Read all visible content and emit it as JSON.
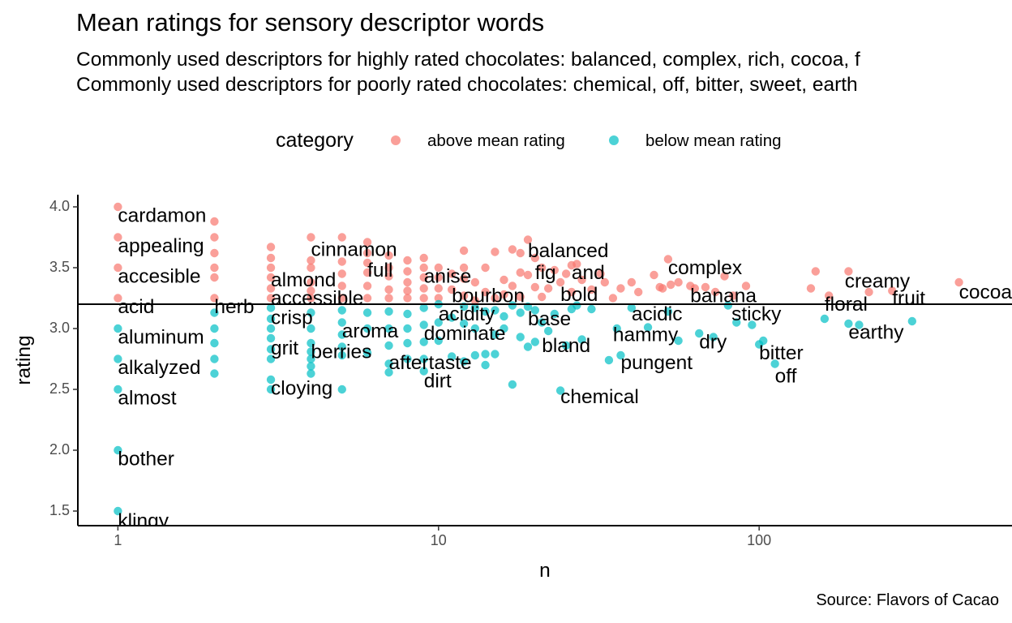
{
  "chart_data": {
    "type": "scatter",
    "title": "Mean ratings for sensory descriptor words",
    "subtitle_lines": [
      "Commonly used descriptors for highly rated chocolates: balanced, complex, rich, cocoa, f",
      "Commonly used descriptors for poorly rated chocolates: chemical, off, bitter, sweet, earth"
    ],
    "caption": "Source: Flavors of Cacao",
    "xlabel": "n",
    "ylabel": "rating",
    "x_scale": "log10",
    "xlim": [
      0.75,
      560
    ],
    "ylim": [
      1.38,
      4.1
    ],
    "x_ticks": [
      1,
      10,
      100
    ],
    "x_tick_labels": [
      "1",
      "10",
      "100"
    ],
    "y_ticks": [
      1.5,
      2.0,
      2.5,
      3.0,
      3.5,
      4.0
    ],
    "y_tick_labels": [
      "1.5",
      "2.0",
      "2.5",
      "3.0",
      "3.5",
      "4.0"
    ],
    "mean_rating": 3.2,
    "grid": false,
    "legend": {
      "title": "category",
      "position": "top",
      "entries": [
        {
          "label": "above mean rating",
          "color": "#F8766D"
        },
        {
          "label": "below mean rating",
          "color": "#00BFC4"
        }
      ]
    },
    "colors": {
      "above": "#F8766D",
      "below": "#00BFC4"
    },
    "points_above": [
      [
        1,
        4.0
      ],
      [
        1,
        3.75
      ],
      [
        1,
        3.5
      ],
      [
        1,
        3.25
      ],
      [
        2,
        3.88
      ],
      [
        2,
        3.75
      ],
      [
        2,
        3.62
      ],
      [
        2,
        3.5
      ],
      [
        2,
        3.42
      ],
      [
        2,
        3.25
      ],
      [
        3,
        3.67
      ],
      [
        3,
        3.58
      ],
      [
        3,
        3.5
      ],
      [
        3,
        3.42
      ],
      [
        3,
        3.33
      ],
      [
        3,
        3.25
      ],
      [
        4,
        3.75
      ],
      [
        4,
        3.56
      ],
      [
        4,
        3.5
      ],
      [
        4,
        3.38
      ],
      [
        4,
        3.31
      ],
      [
        4,
        3.25
      ],
      [
        5,
        3.75
      ],
      [
        5,
        3.55
      ],
      [
        5,
        3.45
      ],
      [
        5,
        3.35
      ],
      [
        5,
        3.25
      ],
      [
        6,
        3.71
      ],
      [
        6,
        3.62
      ],
      [
        6,
        3.54
      ],
      [
        6,
        3.46
      ],
      [
        6,
        3.35
      ],
      [
        6,
        3.25
      ],
      [
        7,
        3.6
      ],
      [
        7,
        3.5
      ],
      [
        7,
        3.43
      ],
      [
        7,
        3.32
      ],
      [
        7,
        3.25
      ],
      [
        8,
        3.56
      ],
      [
        8,
        3.47
      ],
      [
        8,
        3.38
      ],
      [
        8,
        3.31
      ],
      [
        8,
        3.25
      ],
      [
        9,
        3.58
      ],
      [
        9,
        3.5
      ],
      [
        9,
        3.42
      ],
      [
        9,
        3.33
      ],
      [
        9,
        3.25
      ],
      [
        10,
        3.5
      ],
      [
        10,
        3.42
      ],
      [
        10,
        3.33
      ],
      [
        10,
        3.25
      ],
      [
        11,
        3.45
      ],
      [
        11,
        3.32
      ],
      [
        12,
        3.64
      ],
      [
        12,
        3.5
      ],
      [
        12,
        3.41
      ],
      [
        12,
        3.27
      ],
      [
        13,
        3.38
      ],
      [
        13,
        3.23
      ],
      [
        14,
        3.5
      ],
      [
        14,
        3.3
      ],
      [
        15,
        3.63
      ],
      [
        15,
        3.25
      ],
      [
        16,
        3.4
      ],
      [
        16,
        3.28
      ],
      [
        17,
        3.65
      ],
      [
        17,
        3.35
      ],
      [
        18,
        3.62
      ],
      [
        18,
        3.46
      ],
      [
        18,
        3.26
      ],
      [
        19,
        3.73
      ],
      [
        19,
        3.44
      ],
      [
        20,
        3.58
      ],
      [
        20,
        3.34
      ],
      [
        21,
        3.5
      ],
      [
        21,
        3.26
      ],
      [
        22,
        3.33
      ],
      [
        23,
        3.48
      ],
      [
        24,
        3.38
      ],
      [
        25,
        3.45
      ],
      [
        26,
        3.52
      ],
      [
        26,
        3.3
      ],
      [
        27,
        3.53
      ],
      [
        28,
        3.4
      ],
      [
        30,
        3.32
      ],
      [
        32,
        3.45
      ],
      [
        33,
        3.38
      ],
      [
        35,
        3.25
      ],
      [
        37,
        3.33
      ],
      [
        40,
        3.38
      ],
      [
        42,
        3.3
      ],
      [
        47,
        3.44
      ],
      [
        49,
        3.34
      ],
      [
        50,
        3.33
      ],
      [
        52,
        3.57
      ],
      [
        53,
        3.36
      ],
      [
        56,
        3.38
      ],
      [
        61,
        3.35
      ],
      [
        63,
        3.33
      ],
      [
        68,
        3.34
      ],
      [
        73,
        3.3
      ],
      [
        78,
        3.43
      ],
      [
        83,
        3.27
      ],
      [
        91,
        3.35
      ],
      [
        145,
        3.33
      ],
      [
        150,
        3.47
      ],
      [
        165,
        3.27
      ],
      [
        190,
        3.47
      ],
      [
        220,
        3.3
      ],
      [
        260,
        3.31
      ],
      [
        420,
        3.38
      ]
    ],
    "points_below": [
      [
        1,
        3.0
      ],
      [
        1,
        2.75
      ],
      [
        1,
        2.5
      ],
      [
        1,
        2.0
      ],
      [
        1,
        1.5
      ],
      [
        2,
        3.13
      ],
      [
        2,
        3.0
      ],
      [
        2,
        2.88
      ],
      [
        2,
        2.75
      ],
      [
        2,
        2.63
      ],
      [
        3,
        3.17
      ],
      [
        3,
        3.08
      ],
      [
        3,
        3.0
      ],
      [
        3,
        2.92
      ],
      [
        3,
        2.83
      ],
      [
        3,
        2.75
      ],
      [
        3,
        2.58
      ],
      [
        3,
        2.5
      ],
      [
        4,
        3.13
      ],
      [
        4,
        3.0
      ],
      [
        4,
        2.88
      ],
      [
        4,
        2.81
      ],
      [
        4,
        2.75
      ],
      [
        4,
        2.69
      ],
      [
        4,
        2.63
      ],
      [
        5,
        3.15
      ],
      [
        5,
        3.05
      ],
      [
        5,
        2.95
      ],
      [
        5,
        2.85
      ],
      [
        5,
        2.78
      ],
      [
        5,
        2.5
      ],
      [
        6,
        3.13
      ],
      [
        6,
        3.0
      ],
      [
        6,
        2.8
      ],
      [
        7,
        3.14
      ],
      [
        7,
        3.0
      ],
      [
        7,
        2.86
      ],
      [
        7,
        2.71
      ],
      [
        7,
        2.64
      ],
      [
        8,
        3.12
      ],
      [
        8,
        3.0
      ],
      [
        8,
        2.88
      ],
      [
        8,
        2.75
      ],
      [
        9,
        3.17
      ],
      [
        9,
        3.03
      ],
      [
        9,
        2.89
      ],
      [
        9,
        2.75
      ],
      [
        9,
        2.65
      ],
      [
        10,
        3.2
      ],
      [
        10,
        3.05
      ],
      [
        10,
        2.9
      ],
      [
        11,
        3.09
      ],
      [
        11,
        2.77
      ],
      [
        12,
        3.18
      ],
      [
        12,
        3.04
      ],
      [
        12,
        2.73
      ],
      [
        13,
        3.17
      ],
      [
        13,
        3.0
      ],
      [
        13,
        2.78
      ],
      [
        14,
        3.14
      ],
      [
        14,
        2.79
      ],
      [
        14,
        2.7
      ],
      [
        15,
        3.15
      ],
      [
        15,
        2.95
      ],
      [
        15,
        2.79
      ],
      [
        16,
        3.1
      ],
      [
        16,
        3.0
      ],
      [
        17,
        3.19
      ],
      [
        17,
        2.54
      ],
      [
        18,
        3.13
      ],
      [
        18,
        2.93
      ],
      [
        19,
        3.18
      ],
      [
        19,
        2.85
      ],
      [
        20,
        3.15
      ],
      [
        20,
        2.89
      ],
      [
        21,
        3.05
      ],
      [
        22,
        2.98
      ],
      [
        23,
        3.12
      ],
      [
        24,
        2.49
      ],
      [
        25,
        2.86
      ],
      [
        26,
        3.16
      ],
      [
        27,
        3.19
      ],
      [
        28,
        2.91
      ],
      [
        30,
        3.16
      ],
      [
        34,
        2.74
      ],
      [
        36,
        3.0
      ],
      [
        37,
        2.78
      ],
      [
        40,
        3.17
      ],
      [
        45,
        3.01
      ],
      [
        52,
        3.14
      ],
      [
        56,
        2.9
      ],
      [
        65,
        2.96
      ],
      [
        72,
        2.93
      ],
      [
        80,
        3.19
      ],
      [
        85,
        3.05
      ],
      [
        95,
        3.03
      ],
      [
        100,
        2.87
      ],
      [
        103,
        2.9
      ],
      [
        112,
        2.71
      ],
      [
        160,
        3.08
      ],
      [
        190,
        3.04
      ],
      [
        205,
        3.03
      ],
      [
        300,
        3.06
      ]
    ],
    "labels": [
      {
        "text": "cardamon",
        "x": 1,
        "y": 3.92
      },
      {
        "text": "appealing",
        "x": 1,
        "y": 3.67
      },
      {
        "text": "accesible",
        "x": 1,
        "y": 3.42
      },
      {
        "text": "acid",
        "x": 1,
        "y": 3.17
      },
      {
        "text": "aluminum",
        "x": 1,
        "y": 2.92
      },
      {
        "text": "alkalyzed",
        "x": 1,
        "y": 2.67
      },
      {
        "text": "almost",
        "x": 1,
        "y": 2.42
      },
      {
        "text": "bother",
        "x": 1,
        "y": 1.92
      },
      {
        "text": "klingy",
        "x": 1,
        "y": 1.41
      },
      {
        "text": "herb",
        "x": 2,
        "y": 3.17
      },
      {
        "text": "almond",
        "x": 3,
        "y": 3.39
      },
      {
        "text": "accessible",
        "x": 3,
        "y": 3.24
      },
      {
        "text": "crisp",
        "x": 3,
        "y": 3.08
      },
      {
        "text": "grit",
        "x": 3,
        "y": 2.83
      },
      {
        "text": "cloying",
        "x": 3,
        "y": 2.5
      },
      {
        "text": "cinnamon",
        "x": 4,
        "y": 3.64
      },
      {
        "text": "berries",
        "x": 4,
        "y": 2.8
      },
      {
        "text": "full",
        "x": 6,
        "y": 3.47
      },
      {
        "text": "aroma",
        "x": 5,
        "y": 2.97
      },
      {
        "text": "anise",
        "x": 9,
        "y": 3.42
      },
      {
        "text": "aftertaste",
        "x": 7,
        "y": 2.71
      },
      {
        "text": "dirt",
        "x": 9,
        "y": 2.56
      },
      {
        "text": "dominate",
        "x": 9,
        "y": 2.95
      },
      {
        "text": "acidity",
        "x": 10,
        "y": 3.11
      },
      {
        "text": "bourbon",
        "x": 11,
        "y": 3.26
      },
      {
        "text": "balanced",
        "x": 19,
        "y": 3.63
      },
      {
        "text": "fig",
        "x": 20,
        "y": 3.45
      },
      {
        "text": "and",
        "x": 26,
        "y": 3.45
      },
      {
        "text": "bold",
        "x": 24,
        "y": 3.27
      },
      {
        "text": "base",
        "x": 19,
        "y": 3.07
      },
      {
        "text": "bland",
        "x": 21,
        "y": 2.85
      },
      {
        "text": "chemical",
        "x": 24,
        "y": 2.43
      },
      {
        "text": "complex",
        "x": 52,
        "y": 3.49
      },
      {
        "text": "acidic",
        "x": 40,
        "y": 3.11
      },
      {
        "text": "hammy",
        "x": 35,
        "y": 2.94
      },
      {
        "text": "pungent",
        "x": 37,
        "y": 2.71
      },
      {
        "text": "dry",
        "x": 65,
        "y": 2.88
      },
      {
        "text": "banana",
        "x": 61,
        "y": 3.26
      },
      {
        "text": "sticky",
        "x": 82,
        "y": 3.11
      },
      {
        "text": "bitter",
        "x": 100,
        "y": 2.79
      },
      {
        "text": "off",
        "x": 112,
        "y": 2.6
      },
      {
        "text": "floral",
        "x": 160,
        "y": 3.19
      },
      {
        "text": "creamy",
        "x": 185,
        "y": 3.38
      },
      {
        "text": "fruit",
        "x": 260,
        "y": 3.24
      },
      {
        "text": "earthy",
        "x": 190,
        "y": 2.96
      },
      {
        "text": "cocoa",
        "x": 420,
        "y": 3.29
      }
    ]
  }
}
